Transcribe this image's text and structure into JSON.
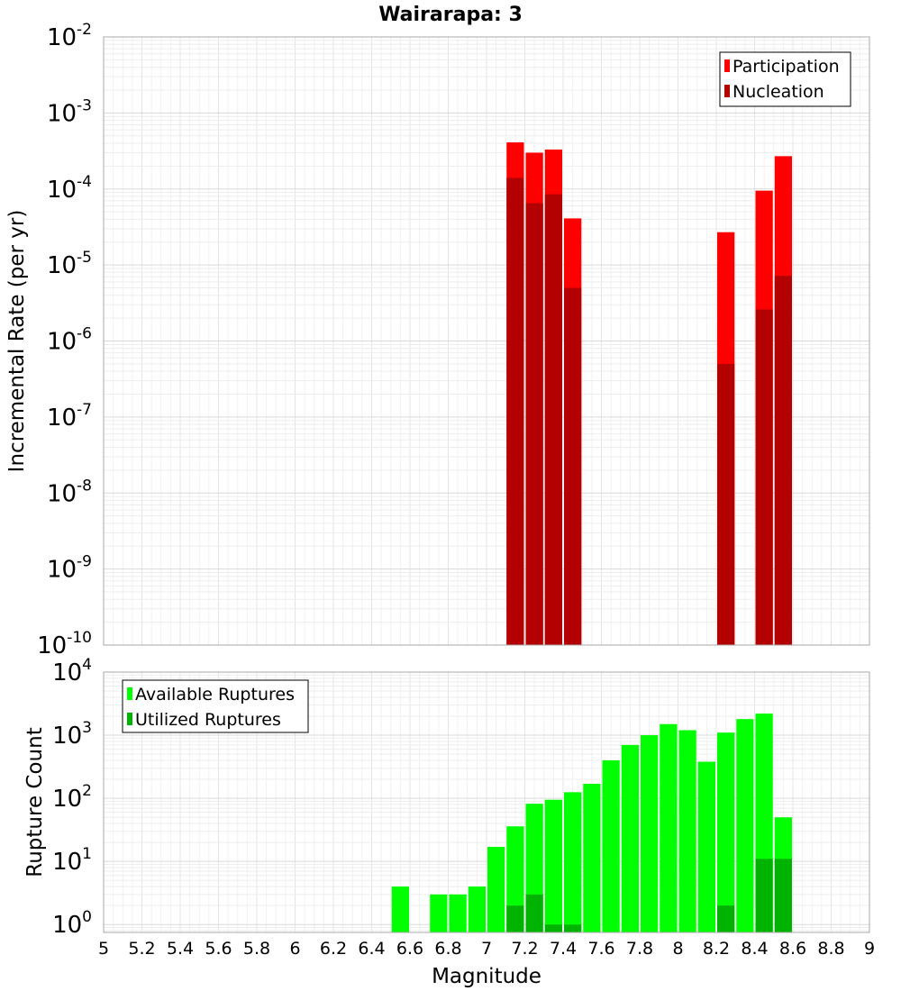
{
  "chart_data": [
    {
      "type": "bar",
      "title": "Wairarapa: 3",
      "xlabel": "",
      "ylabel": "Incremental Rate (per yr)",
      "yscale": "log",
      "ylim": [
        1e-10,
        0.01
      ],
      "xlim": [
        5,
        9
      ],
      "y_ticks": [
        {
          "base": "10",
          "exp": "-10"
        },
        {
          "base": "10",
          "exp": "-9"
        },
        {
          "base": "10",
          "exp": "-8"
        },
        {
          "base": "10",
          "exp": "-7"
        },
        {
          "base": "10",
          "exp": "-6"
        },
        {
          "base": "10",
          "exp": "-5"
        },
        {
          "base": "10",
          "exp": "-4"
        },
        {
          "base": "10",
          "exp": "-3"
        },
        {
          "base": "10",
          "exp": "-2"
        }
      ],
      "grid": true,
      "legend": {
        "position": "top-right",
        "entries": [
          "Participation",
          "Nucleation"
        ]
      },
      "series": [
        {
          "name": "Participation",
          "color": "#ff0000",
          "x": [
            7.15,
            7.25,
            7.35,
            7.45,
            8.25,
            8.45,
            8.55
          ],
          "values": [
            0.00041,
            0.0003,
            0.00033,
            4.1e-05,
            2.7e-05,
            9.5e-05,
            0.00027
          ]
        },
        {
          "name": "Nucleation",
          "color": "#b30000",
          "x": [
            7.15,
            7.25,
            7.35,
            7.45,
            8.25,
            8.45,
            8.55
          ],
          "values": [
            0.00014,
            6.5e-05,
            8.5e-05,
            5e-06,
            5e-07,
            2.6e-06,
            7.2e-06
          ]
        }
      ]
    },
    {
      "type": "bar",
      "title": "",
      "xlabel": "Magnitude",
      "ylabel": "Rupture Count",
      "yscale": "log",
      "ylim": [
        0.75,
        10000
      ],
      "xlim": [
        5,
        9
      ],
      "x_ticks": [
        "5",
        "5.2",
        "5.4",
        "5.6",
        "5.8",
        "6",
        "6.2",
        "6.4",
        "6.6",
        "6.8",
        "7",
        "7.2",
        "7.4",
        "7.6",
        "7.8",
        "8",
        "8.2",
        "8.4",
        "8.6",
        "8.8",
        "9"
      ],
      "y_ticks": [
        {
          "base": "10",
          "exp": "0"
        },
        {
          "base": "10",
          "exp": "1"
        },
        {
          "base": "10",
          "exp": "2"
        },
        {
          "base": "10",
          "exp": "3"
        },
        {
          "base": "10",
          "exp": "4"
        }
      ],
      "grid": true,
      "legend": {
        "position": "top-left",
        "entries": [
          "Available Ruptures",
          "Utilized Ruptures"
        ]
      },
      "series": [
        {
          "name": "Available Ruptures",
          "color": "#00ff00",
          "x": [
            6.55,
            6.75,
            6.85,
            6.95,
            7.05,
            7.15,
            7.25,
            7.35,
            7.45,
            7.55,
            7.65,
            7.75,
            7.85,
            7.95,
            8.05,
            8.15,
            8.25,
            8.35,
            8.45,
            8.55
          ],
          "values": [
            4,
            3,
            3,
            4,
            17,
            36,
            82,
            95,
            125,
            170,
            400,
            700,
            1000,
            1500,
            1200,
            380,
            1100,
            1800,
            2200,
            50
          ]
        },
        {
          "name": "Utilized Ruptures",
          "color": "#00b300",
          "x": [
            7.15,
            7.25,
            7.35,
            7.45,
            8.25,
            8.45,
            8.55
          ],
          "values": [
            2,
            3,
            1,
            1,
            2,
            11,
            11
          ]
        }
      ]
    }
  ]
}
